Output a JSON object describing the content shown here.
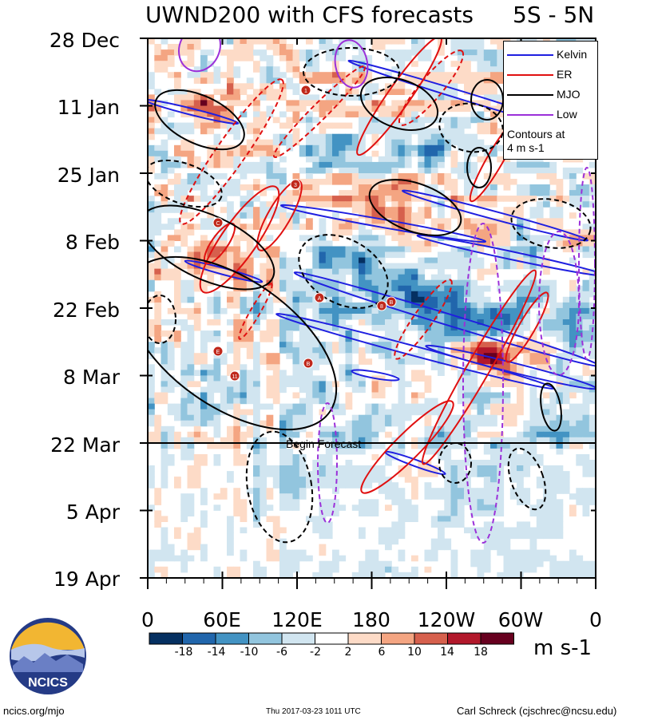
{
  "chart_data": {
    "type": "heatmap",
    "title": "UWND200 with CFS forecasts",
    "region": "5S - 5N",
    "y_tick_labels": [
      "28 Dec",
      "11 Jan",
      "25 Jan",
      "8 Feb",
      "22 Feb",
      "8 Mar",
      "22 Mar",
      "5 Apr",
      "19 Apr"
    ],
    "x_tick_labels": [
      "0",
      "60E",
      "120E",
      "180",
      "120W",
      "60W",
      "0"
    ],
    "x_range_deg_east": [
      0,
      360
    ],
    "time_range_days": [
      0,
      112
    ],
    "forecast_start_day": 84,
    "forecast_label": "Begin Forecast",
    "colorbar": {
      "labels": [
        "-18",
        "-14",
        "-10",
        "-6",
        "-2",
        "2",
        "6",
        "10",
        "14",
        "18"
      ],
      "colors": [
        "#053061",
        "#2166ac",
        "#4393c3",
        "#92c5de",
        "#d1e5f0",
        "#ffffff",
        "#fddbc7",
        "#f4a582",
        "#d6604d",
        "#b2182b",
        "#67001f"
      ],
      "units": "m s-1"
    },
    "legend": {
      "entries": [
        {
          "label": "Kelvin",
          "color": "#1f1fe0"
        },
        {
          "label": "ER",
          "color": "#e01010"
        },
        {
          "label": "MJO",
          "color": "#000000"
        },
        {
          "label": "Low",
          "color": "#9b30d9"
        }
      ],
      "note_line1": "Contours at",
      "note_line2": "4 m s-1",
      "placement": "top-right"
    },
    "storm_markers": [
      "1",
      "3",
      "C",
      "A",
      "B",
      "8",
      "B",
      "E",
      "B",
      "11"
    ]
  },
  "footer": {
    "left": "ncics.org/mjo",
    "center": "Thu 2017-03-23 1011 UTC",
    "right": "Carl Schreck (cjschrec@ncsu.edu)"
  },
  "logo": {
    "text": "NCICS"
  }
}
